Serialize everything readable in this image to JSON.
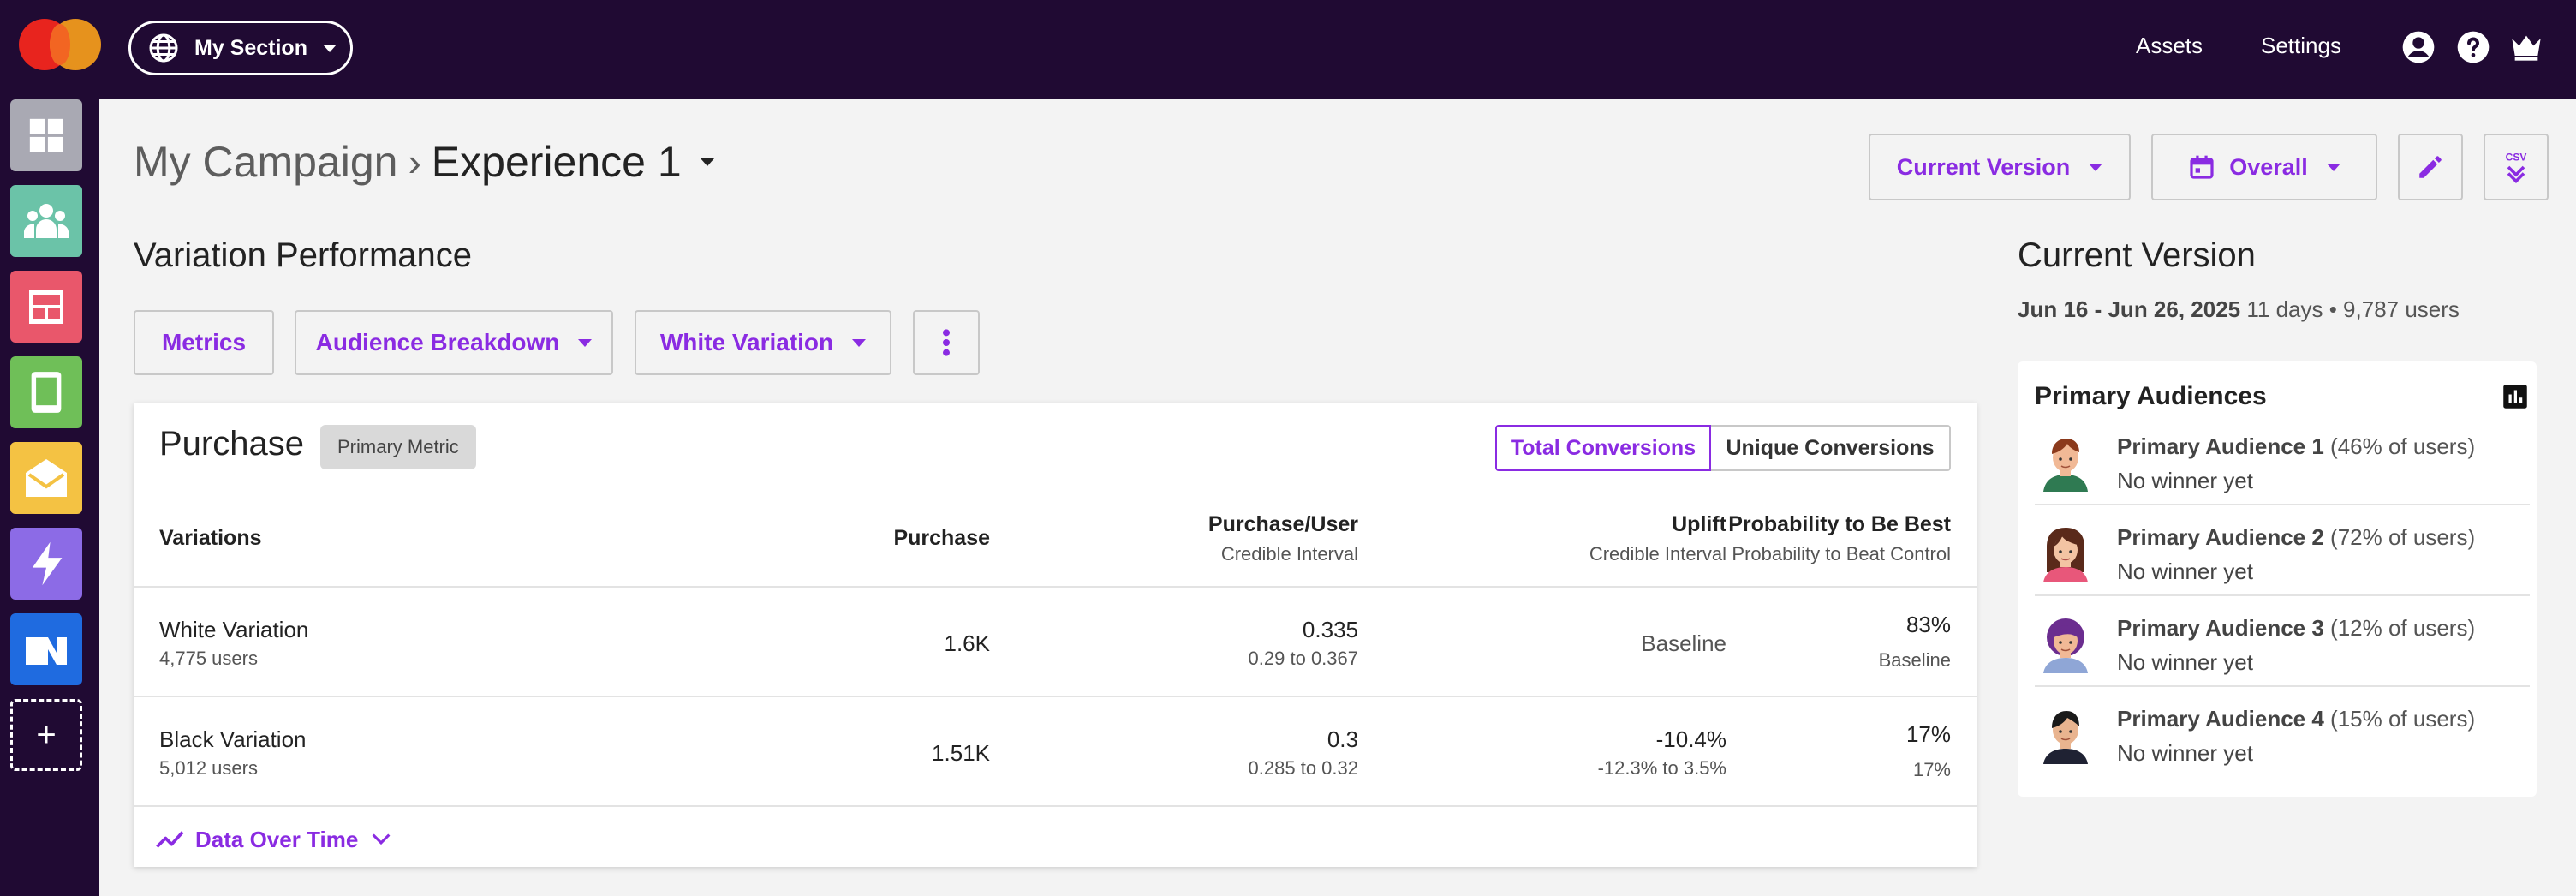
{
  "topbar": {
    "section_label": "My Section",
    "links": {
      "assets": "Assets",
      "settings": "Settings"
    }
  },
  "header": {
    "campaign": "My Campaign",
    "separator": "›",
    "experience": "Experience 1",
    "version_button": "Current Version",
    "date_button": "Overall"
  },
  "section_title": "Variation Performance",
  "filters": {
    "metrics": "Metrics",
    "audience_breakdown": "Audience Breakdown",
    "variation": "White Variation"
  },
  "card": {
    "title": "Purchase",
    "badge": "Primary Metric",
    "toggle": {
      "total": "Total Conversions",
      "unique": "Unique Conversions"
    },
    "columns": {
      "variations": "Variations",
      "purchase": "Purchase",
      "per_user": "Purchase/User",
      "per_user_sub": "Credible Interval",
      "uplift": "Uplift",
      "uplift_sub": "Credible Interval",
      "prob": "Probability to Be Best",
      "prob_sub": "Probability to Beat Control"
    },
    "rows": [
      {
        "name": "White Variation",
        "users": "4,775 users",
        "purchase": "1.6K",
        "per_user": "0.335",
        "per_user_ci": "0.29 to 0.367",
        "uplift": "Baseline",
        "uplift_ci": "",
        "prob": "83%",
        "prob_control": "Baseline"
      },
      {
        "name": "Black Variation",
        "users": "5,012 users",
        "purchase": "1.51K",
        "per_user": "0.3",
        "per_user_ci": "0.285 to 0.32",
        "uplift": "-10.4%",
        "uplift_ci": "-12.3% to 3.5%",
        "prob": "17%",
        "prob_control": "17%"
      }
    ],
    "footer_link": "Data Over Time"
  },
  "right_panel": {
    "title": "Current Version",
    "date_range": "Jun 16 - Jun 26, 2025",
    "meta": "11 days • 9,787 users",
    "audiences_title": "Primary Audiences",
    "audiences": [
      {
        "name": "Primary Audience 1",
        "share": "(46% of users)",
        "status": "No winner yet"
      },
      {
        "name": "Primary Audience 2",
        "share": "(72% of users)",
        "status": "No winner yet"
      },
      {
        "name": "Primary Audience 3",
        "share": "(12% of users)",
        "status": "No winner yet"
      },
      {
        "name": "Primary Audience 4",
        "share": "(15% of users)",
        "status": "No winner yet"
      }
    ]
  },
  "colors": {
    "topbar_bg": "#200a33",
    "accent": "#8a2be2",
    "app_dashboard": "#a9a9b3",
    "app_audiences": "#6bc3a8",
    "app_web": "#e9576b",
    "app_mobile": "#6fbf58",
    "app_email": "#f4c243",
    "app_recommendations": "#8c6be6",
    "app_feed": "#1f6be0"
  },
  "icons": {
    "topbar": [
      "globe-icon",
      "user-icon",
      "help-icon",
      "crown-icon"
    ],
    "apps": [
      "dashboard-icon",
      "audiences-icon",
      "web-layout-icon",
      "mobile-icon",
      "email-icon",
      "lightning-icon",
      "feed-icon",
      "plus-icon"
    ],
    "header": [
      "calendar-icon",
      "pencil-icon",
      "csv-download-icon"
    ],
    "misc": [
      "more-vertical-icon",
      "trend-line-icon",
      "chevron-down-icon",
      "bar-chart-icon"
    ]
  }
}
